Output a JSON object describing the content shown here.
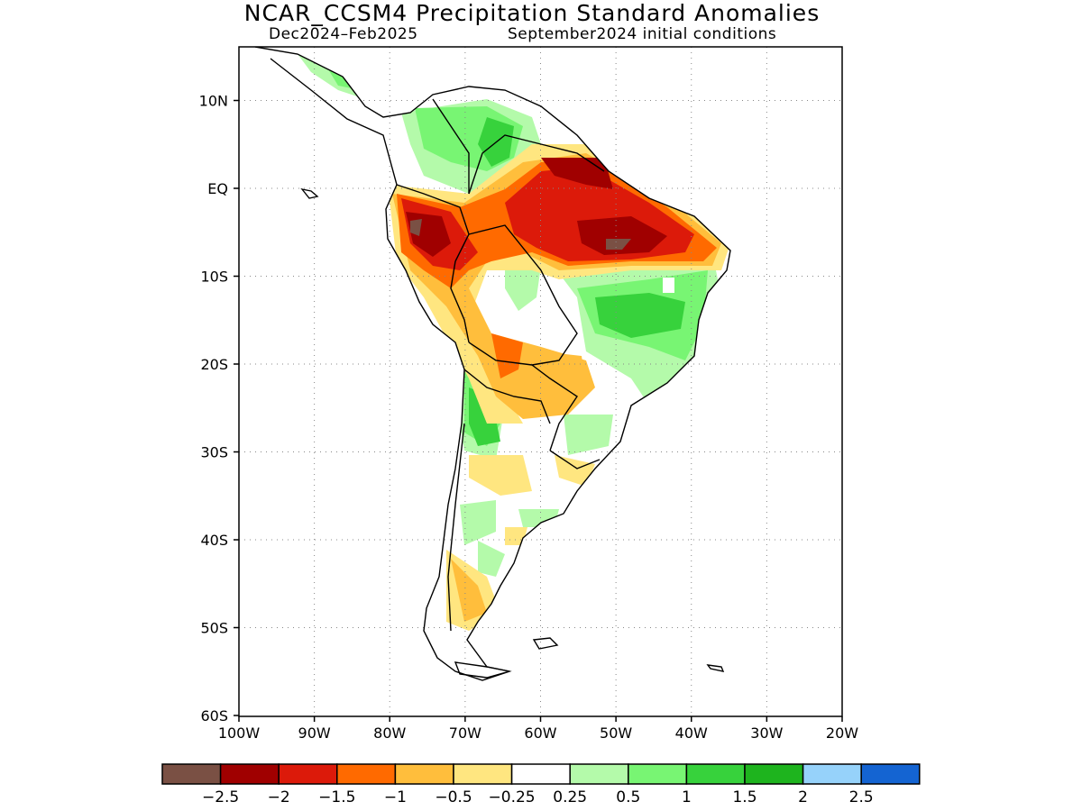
{
  "header": {
    "title": "NCAR_CCSM4 Precipitation Standard Anomalies",
    "period": "Dec2024–Feb2025",
    "initial_conditions": "September2024 initial conditions"
  },
  "map": {
    "lat_labels": [
      "10N",
      "EQ",
      "10S",
      "20S",
      "30S",
      "40S",
      "50S",
      "60S"
    ],
    "lat_values": [
      10,
      0,
      -10,
      -20,
      -30,
      -40,
      -50,
      -60
    ],
    "lon_labels": [
      "100W",
      "90W",
      "80W",
      "70W",
      "60W",
      "50W",
      "40W",
      "30W",
      "20W"
    ],
    "lon_values": [
      -100,
      -90,
      -80,
      -70,
      -60,
      -50,
      -40,
      -30,
      -20
    ]
  },
  "legend": {
    "colors": [
      "#7a5044",
      "#a00000",
      "#dc1a0a",
      "#ff6a00",
      "#ffbe3c",
      "#ffe680",
      "#ffffff",
      "#b4faaa",
      "#78f573",
      "#37d23c",
      "#1eb41e",
      "#96d2fa",
      "#1464d2"
    ],
    "labels": [
      "−2.5",
      "−2",
      "−1.5",
      "−1",
      "−0.5",
      "−0.25",
      "0.25",
      "0.5",
      "1",
      "1.5",
      "2",
      "2.5"
    ]
  }
}
